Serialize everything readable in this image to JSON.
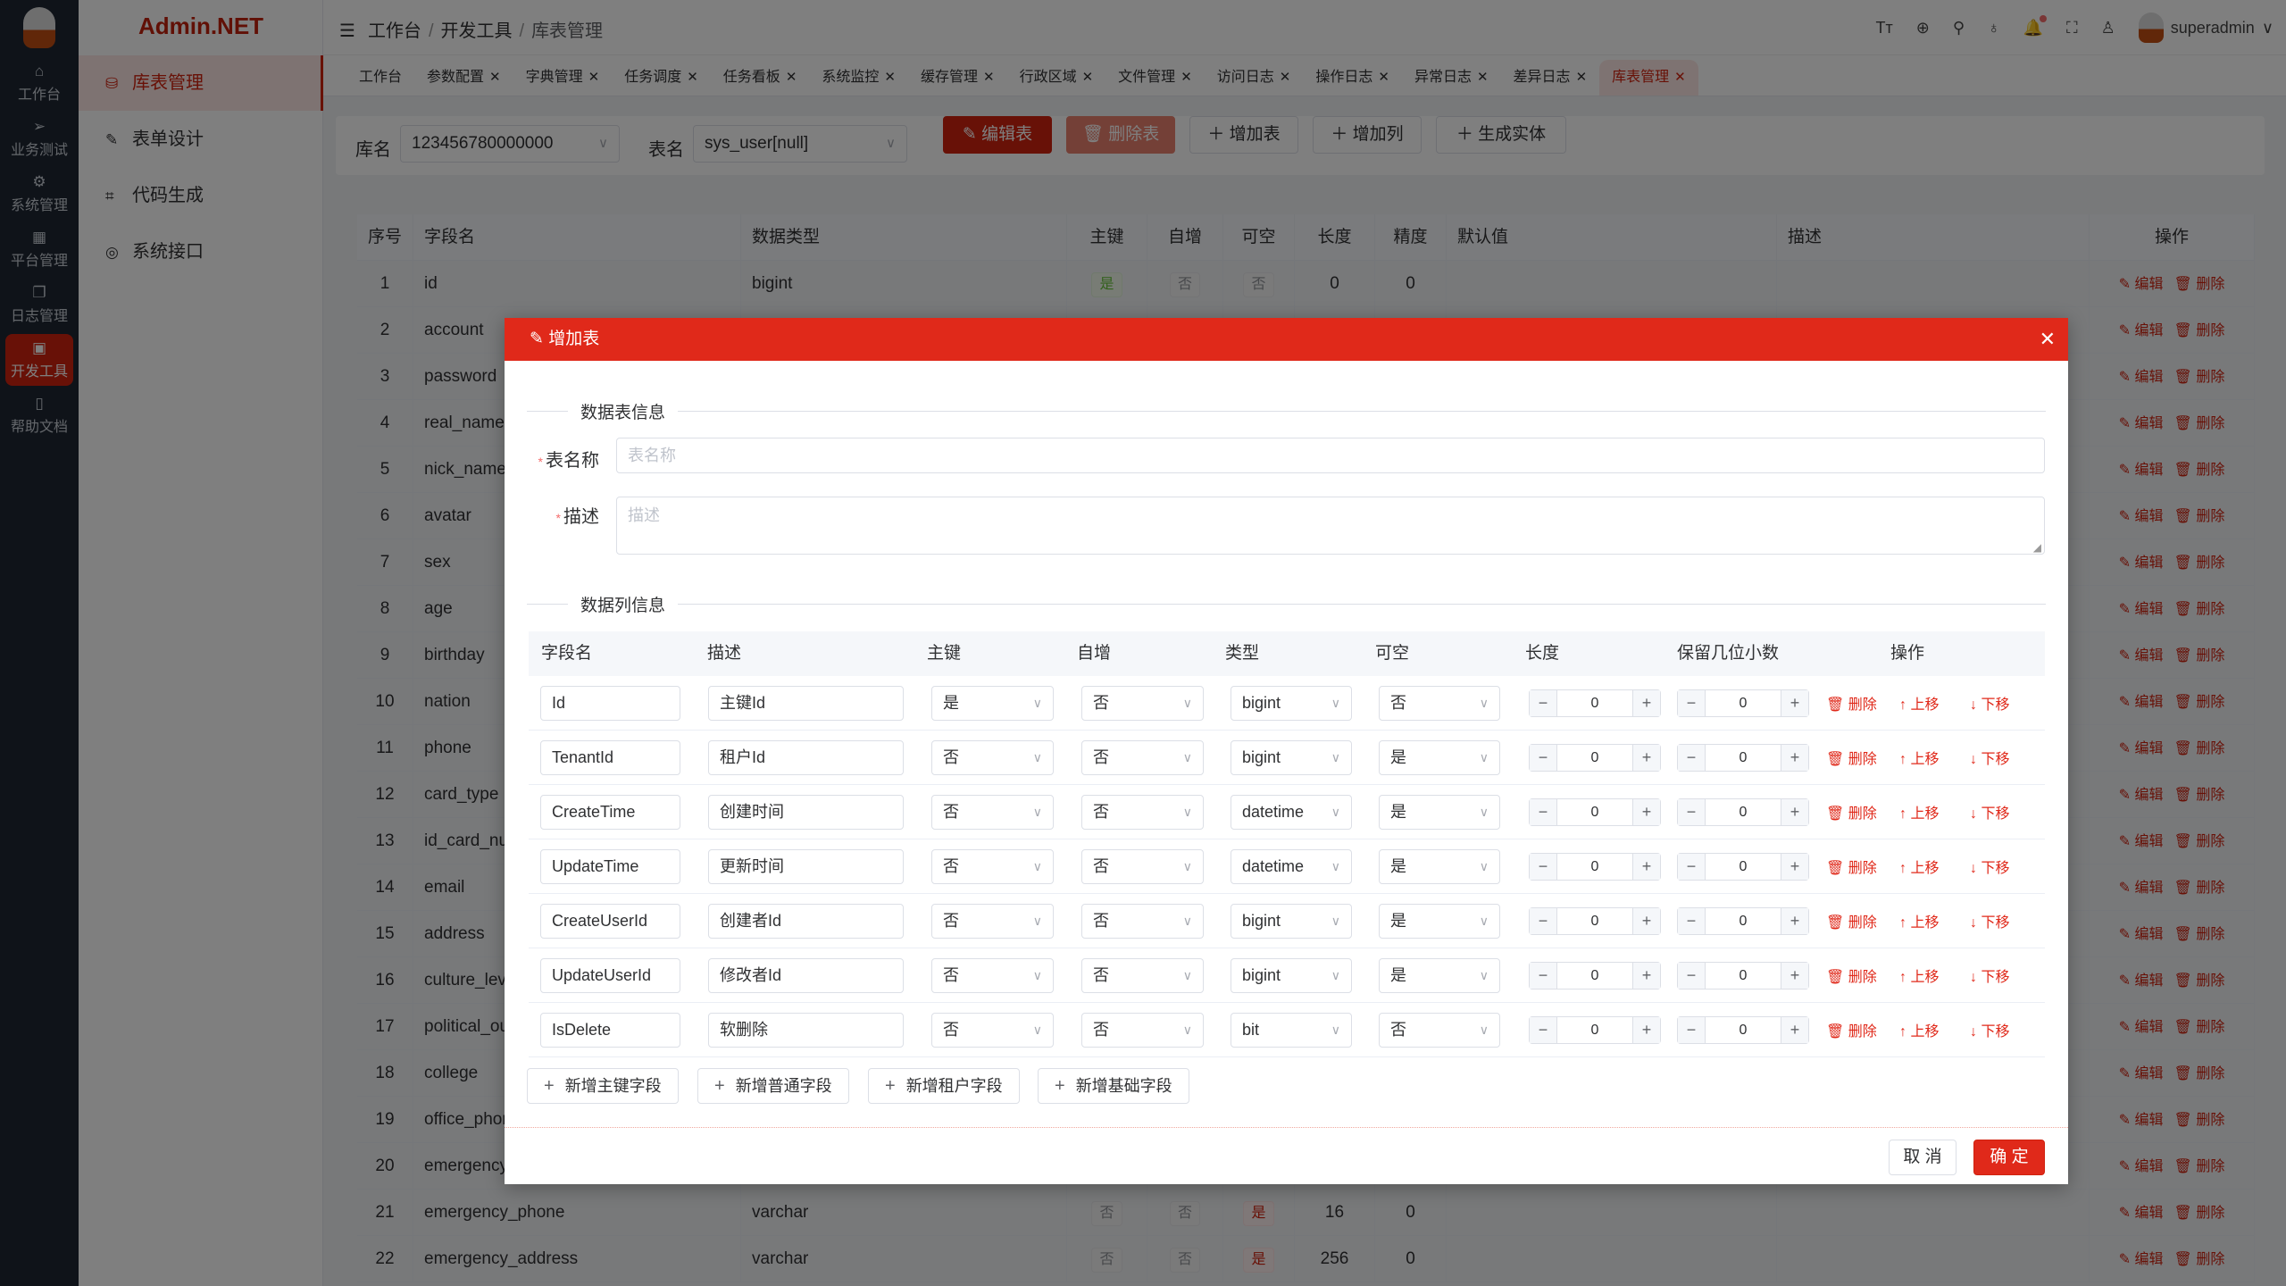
{
  "app": {
    "brand": "Admin.NET",
    "user": "superadmin"
  },
  "colors": {
    "accent": "#d0220f",
    "modal_header": "#e0291a"
  },
  "iconbar": [
    {
      "label": "工作台",
      "icon": "home-icon"
    },
    {
      "label": "业务测试",
      "icon": "send-icon"
    },
    {
      "label": "系统管理",
      "icon": "gear-icon"
    },
    {
      "label": "平台管理",
      "icon": "grid-icon"
    },
    {
      "label": "日志管理",
      "icon": "copy-icon"
    },
    {
      "label": "开发工具",
      "icon": "chip-icon",
      "active": true
    },
    {
      "label": "帮助文档",
      "icon": "notebook-icon"
    }
  ],
  "submenu": [
    {
      "label": "库表管理",
      "icon": "database-icon",
      "active": true
    },
    {
      "label": "表单设计",
      "icon": "edit-icon"
    },
    {
      "label": "代码生成",
      "icon": "crop-icon"
    },
    {
      "label": "系统接口",
      "icon": "lifebuoy-icon"
    }
  ],
  "breadcrumb": [
    "工作台",
    "开发工具",
    "库表管理"
  ],
  "header_icons": [
    "font-size-icon",
    "language-icon",
    "search-icon",
    "skin-icon",
    "bell-icon",
    "fullscreen-icon",
    "user-icon"
  ],
  "tabs": [
    "工作台",
    "参数配置",
    "字典管理",
    "任务调度",
    "任务看板",
    "系统监控",
    "缓存管理",
    "行政区域",
    "文件管理",
    "访问日志",
    "操作日志",
    "异常日志",
    "差异日志",
    "库表管理"
  ],
  "toolbar": {
    "db_label": "库名",
    "db_value": "123456780000000",
    "table_label": "表名",
    "table_value": "sys_user[null]",
    "edit_table": "编辑表",
    "delete_table": "删除表",
    "add_table": "增加表",
    "add_column": "增加列",
    "gen_entity": "生成实体"
  },
  "bg_table": {
    "headers": [
      "序号",
      "字段名",
      "数据类型",
      "主键",
      "自增",
      "可空",
      "长度",
      "精度",
      "默认值",
      "描述",
      "操作"
    ],
    "op_edit": "编辑",
    "op_delete": "删除",
    "rows": [
      {
        "no": "1",
        "name": "id",
        "type": "bigint",
        "pk": "是",
        "auto": "否",
        "null": "否",
        "len": "0",
        "prec": "0"
      },
      {
        "no": "2",
        "name": "account"
      },
      {
        "no": "3",
        "name": "password"
      },
      {
        "no": "4",
        "name": "real_name"
      },
      {
        "no": "5",
        "name": "nick_name"
      },
      {
        "no": "6",
        "name": "avatar"
      },
      {
        "no": "7",
        "name": "sex"
      },
      {
        "no": "8",
        "name": "age"
      },
      {
        "no": "9",
        "name": "birthday"
      },
      {
        "no": "10",
        "name": "nation"
      },
      {
        "no": "11",
        "name": "phone"
      },
      {
        "no": "12",
        "name": "card_type"
      },
      {
        "no": "13",
        "name": "id_card_num"
      },
      {
        "no": "14",
        "name": "email"
      },
      {
        "no": "15",
        "name": "address"
      },
      {
        "no": "16",
        "name": "culture_level"
      },
      {
        "no": "17",
        "name": "political_outlook"
      },
      {
        "no": "18",
        "name": "college"
      },
      {
        "no": "19",
        "name": "office_phone"
      },
      {
        "no": "20",
        "name": "emergency_contact"
      },
      {
        "no": "21",
        "name": "emergency_phone",
        "type": "varchar",
        "pk": "否",
        "auto": "否",
        "null": "是",
        "len": "16",
        "prec": "0"
      },
      {
        "no": "22",
        "name": "emergency_address",
        "type": "varchar",
        "pk": "否",
        "auto": "否",
        "null": "是",
        "len": "256",
        "prec": "0"
      }
    ]
  },
  "modal": {
    "title": "增加表",
    "section_table": "数据表信息",
    "name_label": "表名称",
    "name_placeholder": "表名称",
    "desc_label": "描述",
    "desc_placeholder": "描述",
    "section_columns": "数据列信息",
    "col_headers": [
      "字段名",
      "描述",
      "主键",
      "自增",
      "类型",
      "可空",
      "长度",
      "保留几位小数",
      "操作"
    ],
    "op_delete": "删除",
    "op_up": "上移",
    "op_down": "下移",
    "columns": [
      {
        "name": "Id",
        "desc": "主键Id",
        "pk": "是",
        "auto": "否",
        "type": "bigint",
        "null": "否",
        "len": "0",
        "dec": "0"
      },
      {
        "name": "TenantId",
        "desc": "租户Id",
        "pk": "否",
        "auto": "否",
        "type": "bigint",
        "null": "是",
        "len": "0",
        "dec": "0"
      },
      {
        "name": "CreateTime",
        "desc": "创建时间",
        "pk": "否",
        "auto": "否",
        "type": "datetime",
        "null": "是",
        "len": "0",
        "dec": "0"
      },
      {
        "name": "UpdateTime",
        "desc": "更新时间",
        "pk": "否",
        "auto": "否",
        "type": "datetime",
        "null": "是",
        "len": "0",
        "dec": "0"
      },
      {
        "name": "CreateUserId",
        "desc": "创建者Id",
        "pk": "否",
        "auto": "否",
        "type": "bigint",
        "null": "是",
        "len": "0",
        "dec": "0"
      },
      {
        "name": "UpdateUserId",
        "desc": "修改者Id",
        "pk": "否",
        "auto": "否",
        "type": "bigint",
        "null": "是",
        "len": "0",
        "dec": "0"
      },
      {
        "name": "IsDelete",
        "desc": "软删除",
        "pk": "否",
        "auto": "否",
        "type": "bit",
        "null": "否",
        "len": "0",
        "dec": "0"
      }
    ],
    "add_buttons": [
      "新增主键字段",
      "新增普通字段",
      "新增租户字段",
      "新增基础字段"
    ],
    "cancel": "取 消",
    "confirm": "确 定"
  }
}
